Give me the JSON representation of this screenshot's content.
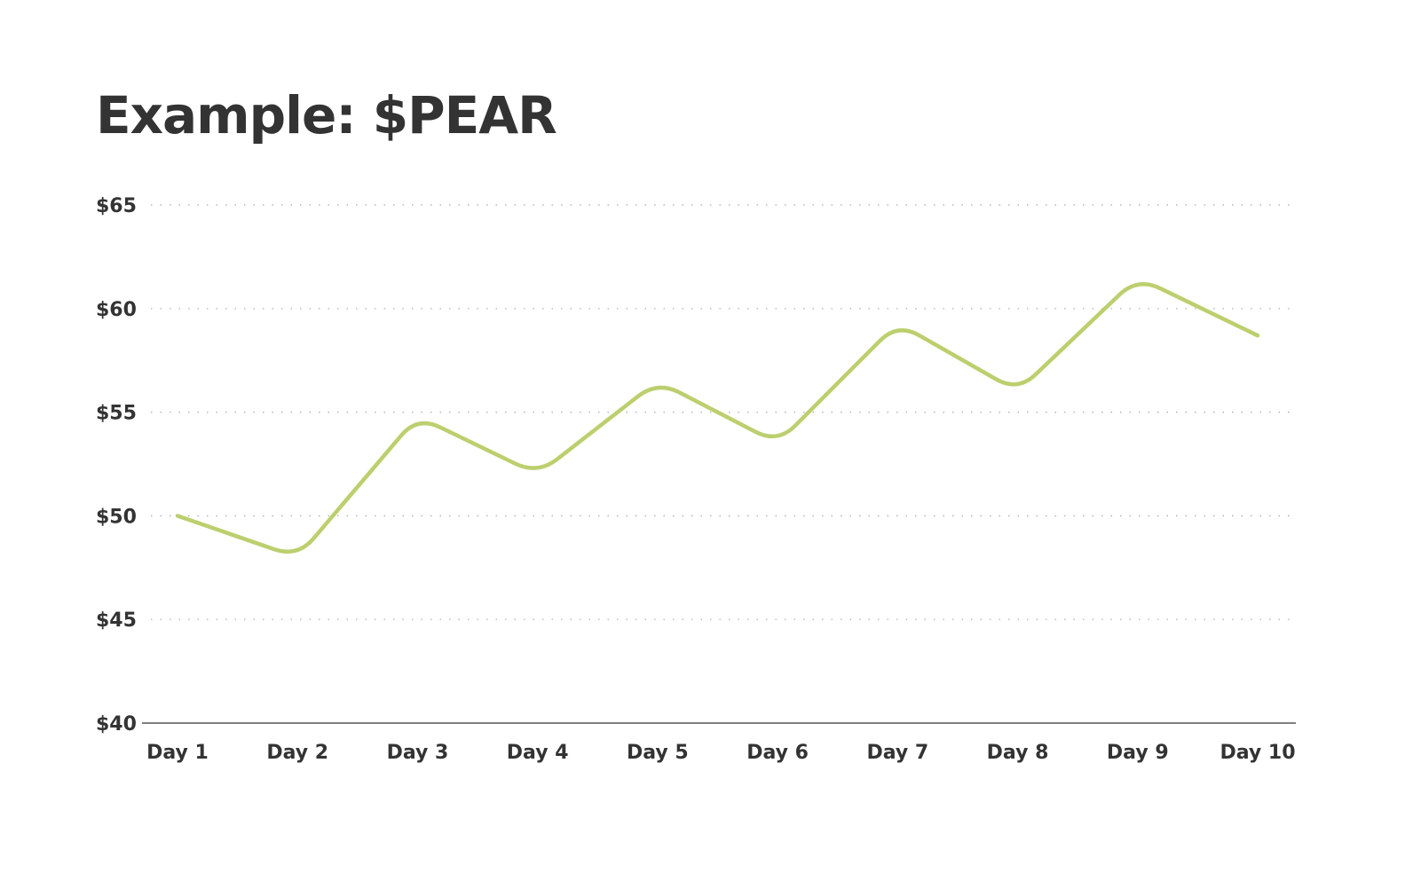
{
  "chart_data": {
    "type": "line",
    "title": "Example: $PEAR",
    "xlabel": "",
    "ylabel": "",
    "categories": [
      "Day 1",
      "Day 2",
      "Day 3",
      "Day 4",
      "Day 5",
      "Day 6",
      "Day 7",
      "Day 8",
      "Day 9",
      "Day 10"
    ],
    "values": [
      50,
      48,
      54.8,
      52,
      56.5,
      53.5,
      59.3,
      56,
      61.5,
      58.7
    ],
    "ylim": [
      40,
      65
    ],
    "yticks": [
      40,
      45,
      50,
      55,
      60,
      65
    ],
    "ytick_labels": [
      "$40",
      "$45",
      "$50",
      "$55",
      "$60",
      "$65"
    ],
    "grid": "horizontal dotted",
    "line_color": "#bccf6e"
  }
}
